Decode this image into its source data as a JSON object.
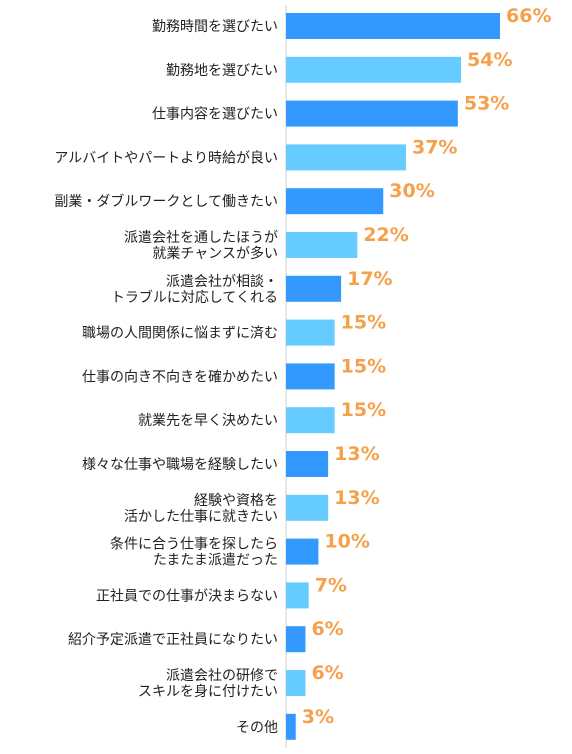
{
  "chart_data": {
    "type": "bar",
    "orientation": "horizontal",
    "categories": [
      "勤務時間を選びたい",
      "勤務地を選びたい",
      "仕事内容を選びたい",
      "アルバイトやパートより時給が良い",
      "副業・ダブルワークとして働きたい",
      "派遣会社を通したほうが\n就業チャンスが多い",
      "派遣会社が相談・\nトラブルに対応してくれる",
      "職場の人間関係に悩まずに済む",
      "仕事の向き不向きを確かめたい",
      "就業先を早く決めたい",
      "様々な仕事や職場を経験したい",
      "経験や資格を\n活かした仕事に就きたい",
      "条件に合う仕事を探したら\nたまたま派遣だった",
      "正社員での仕事が決まらない",
      "紹介予定派遣で正社員になりたい",
      "派遣会社の研修で\nスキルを身に付けたい",
      "その他"
    ],
    "values": [
      66,
      54,
      53,
      37,
      30,
      22,
      17,
      15,
      15,
      15,
      13,
      13,
      10,
      7,
      6,
      6,
      3
    ],
    "value_labels": [
      "66%",
      "54%",
      "53%",
      "37%",
      "30%",
      "22%",
      "17%",
      "15%",
      "15%",
      "15%",
      "13%",
      "13%",
      "10%",
      "7%",
      "6%",
      "6%",
      "3%"
    ],
    "bar_colors": [
      "#3399ff",
      "#66ccff",
      "#3399ff",
      "#66ccff",
      "#3399ff",
      "#66ccff",
      "#3399ff",
      "#66ccff",
      "#3399ff",
      "#66ccff",
      "#3399ff",
      "#66ccff",
      "#3399ff",
      "#66ccff",
      "#3399ff",
      "#66ccff",
      "#3399ff"
    ],
    "value_label_color": "#f5a04a",
    "xlim": [
      0,
      100
    ],
    "grid": false,
    "legend": "none"
  }
}
